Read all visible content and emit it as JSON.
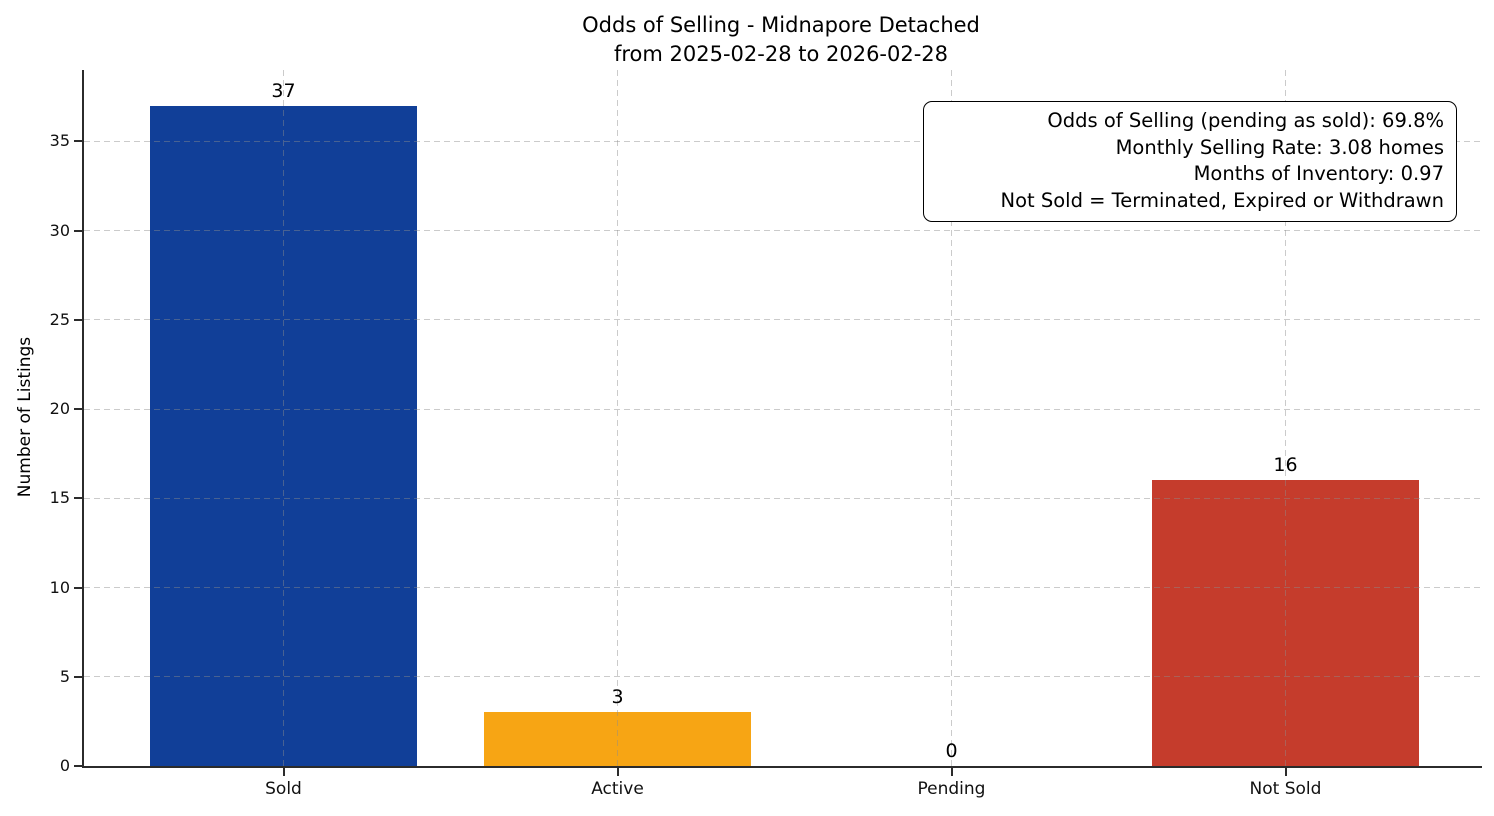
{
  "chart_data": {
    "type": "bar",
    "title_lines": [
      "Odds of Selling - Midnapore Detached",
      "from 2025-02-28 to 2026-02-28"
    ],
    "xlabel": "",
    "ylabel": "Number of Listings",
    "categories": [
      "Sold",
      "Active",
      "Pending",
      "Not Sold"
    ],
    "values": [
      37,
      3,
      0,
      16
    ],
    "bar_labels": [
      "37",
      "3",
      "0",
      "16"
    ],
    "bar_colors": [
      "#113f98",
      "#f7a514",
      null,
      "#c53c2c"
    ],
    "ylim": [
      0,
      39
    ],
    "yticks": [
      0,
      5,
      10,
      15,
      20,
      25,
      30,
      35
    ],
    "grid": {
      "style": "dashed",
      "axes": "both",
      "color": "#d0d0d0"
    },
    "legend": "none",
    "annotation": {
      "position": "top-right",
      "lines": [
        "Odds of Selling (pending as sold): 69.8%",
        "Monthly Selling Rate: 3.08 homes",
        "Months of Inventory: 0.97",
        "Not Sold = Terminated, Expired or Withdrawn"
      ]
    },
    "colors": {
      "axis": "#2b2b2b",
      "text": "#000000",
      "background": "#ffffff"
    }
  }
}
